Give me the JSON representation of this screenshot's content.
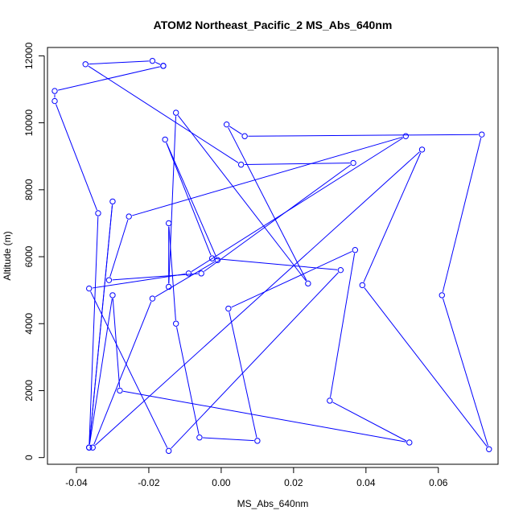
{
  "chart_data": {
    "type": "line",
    "title": "ATOM2 Northeast_Pacific_2 MS_Abs_640nm",
    "xlabel": "MS_Abs_640nm",
    "ylabel": "Altitude (m)",
    "xlim": [
      -0.048,
      0.0765
    ],
    "ylim": [
      -200,
      12250
    ],
    "x_ticks": [
      -0.04,
      -0.02,
      0.0,
      0.02,
      0.04,
      0.06
    ],
    "x_tick_labels": [
      "-0.04",
      "-0.02",
      "0.00",
      "0.02",
      "0.04",
      "0.06"
    ],
    "y_ticks": [
      0,
      2000,
      4000,
      6000,
      8000,
      10000,
      12000
    ],
    "y_tick_labels": [
      "0",
      "2000",
      "4000",
      "6000",
      "8000",
      "10000",
      "12000"
    ],
    "grid": false,
    "marker": "open-circle",
    "series": [
      {
        "color": "#0000ff",
        "x": [
          -0.016,
          -0.046,
          -0.046,
          -0.034,
          -0.0365,
          -0.03,
          -0.0365,
          -0.03,
          -0.028,
          0.052,
          0.03,
          0.037,
          0.002,
          0.01,
          -0.006,
          -0.0125,
          -0.0145,
          -0.0145,
          -0.0125,
          0.024,
          0.0015,
          0.0065,
          0.072,
          0.061,
          0.074,
          0.039,
          0.0555,
          -0.0355,
          -0.019,
          -0.001,
          -0.0155,
          -0.0025,
          0.033,
          -0.0145,
          -0.0365,
          -0.009,
          0.051,
          -0.0255,
          -0.031,
          -0.0055,
          0.0365,
          0.0055,
          -0.0375,
          -0.019,
          -0.016
        ],
        "y": [
          11700,
          10950,
          10650,
          7300,
          300,
          7650,
          300,
          4850,
          2000,
          450,
          1700,
          6200,
          4450,
          500,
          600,
          4000,
          7000,
          5100,
          10300,
          5200,
          9950,
          9600,
          9650,
          4850,
          250,
          5150,
          9200,
          300,
          4750,
          5900,
          9500,
          5950,
          5600,
          200,
          5050,
          5500,
          9600,
          7200,
          5300,
          5500,
          8800,
          8750,
          11750,
          11850,
          11700
        ]
      }
    ]
  }
}
